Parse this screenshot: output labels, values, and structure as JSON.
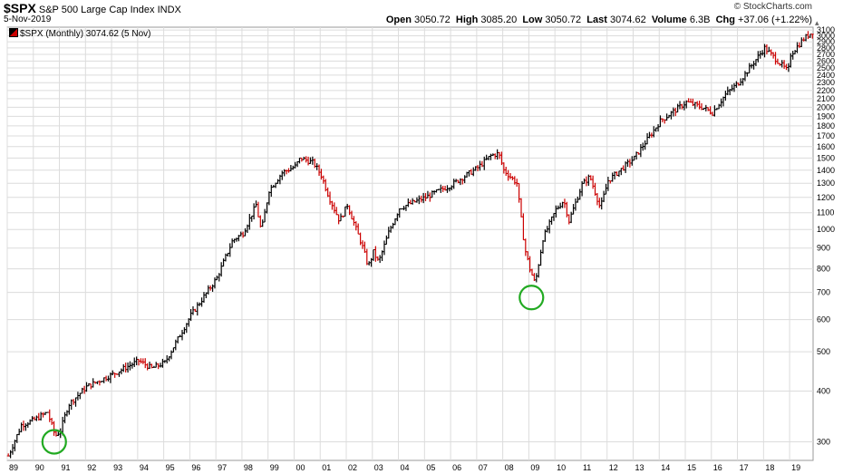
{
  "header": {
    "symbol": "$SPX",
    "name": "S&P 500 Large Cap Index",
    "exchange": "INDX",
    "date": "5-Nov-2019",
    "brand": "© StockCharts.com",
    "open_label": "Open",
    "open": "3050.72",
    "high_label": "High",
    "high": "3085.20",
    "low_label": "Low",
    "low": "3050.72",
    "last_label": "Last",
    "last": "3074.62",
    "volume_label": "Volume",
    "volume": "6.3B",
    "chg_label": "Chg",
    "chg": "+37.06 (+1.22%)"
  },
  "legend": {
    "label": "$SPX (Monthly) 3074.62 (5 Nov)"
  },
  "colors": {
    "up": "#000000",
    "down": "#cc0000",
    "grid": "#dcdcdc",
    "highlight": "#22aa22"
  },
  "chart_data": {
    "type": "line",
    "title": "$SPX S&P 500 Large Cap Index",
    "y_scale": "log",
    "ylim": [
      270,
      3150
    ],
    "y_ticks": [
      300,
      400,
      500,
      600,
      700,
      800,
      900,
      1000,
      1100,
      1200,
      1300,
      1400,
      1500,
      1600,
      1700,
      1800,
      1900,
      2000,
      2100,
      2200,
      2300,
      2400,
      2500,
      2600,
      2700,
      2800,
      2900,
      3000,
      3100
    ],
    "x_tick_labels": [
      "89",
      "90",
      "91",
      "92",
      "93",
      "94",
      "95",
      "96",
      "97",
      "98",
      "99",
      "00",
      "01",
      "02",
      "03",
      "04",
      "05",
      "06",
      "07",
      "08",
      "09",
      "10",
      "11",
      "12",
      "13",
      "14",
      "15",
      "16",
      "17",
      "18",
      "19"
    ],
    "xlim": [
      1989.0,
      2019.9
    ],
    "series": [
      {
        "x": [
          1989.0,
          1989.5,
          1990.0,
          1990.5,
          1990.8,
          1991.0,
          1991.3,
          1992.0,
          1993.0,
          1994.0,
          1994.5,
          1995.0,
          1996.0,
          1997.0,
          1997.6,
          1998.0,
          1998.5,
          1998.7,
          1999.0,
          1999.5,
          2000.0,
          2000.2,
          2000.7,
          2001.0,
          2001.3,
          2001.7,
          2002.0,
          2002.6,
          2002.8,
          2003.0,
          2003.2,
          2003.6,
          2004.0,
          2005.0,
          2006.0,
          2007.0,
          2007.5,
          2007.8,
          2008.0,
          2008.5,
          2008.8,
          2009.0,
          2009.2,
          2009.5,
          2010.0,
          2010.3,
          2010.5,
          2011.0,
          2011.3,
          2011.7,
          2012.0,
          2013.0,
          2014.0,
          2015.0,
          2015.6,
          2016.0,
          2016.5,
          2017.0,
          2018.0,
          2018.9,
          2019.0,
          2019.5,
          2019.85
        ],
        "values": [
          277,
          330,
          340,
          355,
          310,
          320,
          370,
          410,
          440,
          475,
          455,
          470,
          615,
          760,
          940,
          980,
          1150,
          990,
          1250,
          1380,
          1430,
          1500,
          1460,
          1360,
          1200,
          1050,
          1150,
          900,
          810,
          880,
          830,
          990,
          1130,
          1200,
          1290,
          1420,
          1520,
          1540,
          1400,
          1300,
          900,
          800,
          735,
          950,
          1120,
          1180,
          1050,
          1290,
          1350,
          1130,
          1320,
          1500,
          1850,
          2060,
          2000,
          1940,
          2150,
          2300,
          2800,
          2450,
          2700,
          2950,
          3075
        ]
      }
    ],
    "annotations": [
      {
        "type": "circle",
        "x": 1990.8,
        "y": 300
      },
      {
        "type": "circle",
        "x": 2009.1,
        "y": 680
      }
    ]
  }
}
